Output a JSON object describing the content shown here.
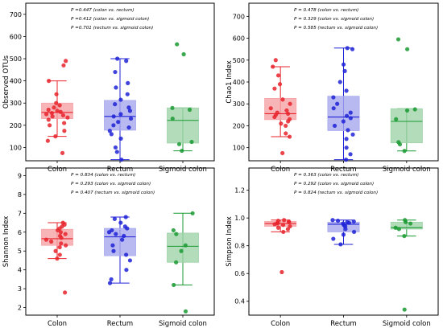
{
  "panel_order": [
    "observed_otus",
    "chao1",
    "shannon",
    "simpson"
  ],
  "groups": [
    {
      "key": "colon",
      "label": "Colon",
      "color": "#e8232b",
      "box_fill": "#f5a3a6"
    },
    {
      "key": "rectum",
      "label": "Rectum",
      "color": "#1f22d6",
      "box_fill": "#a7a8ee"
    },
    {
      "key": "sigmoid",
      "label": "Sigmoid colon",
      "color": "#1a9a33",
      "box_fill": "#9fd3a9"
    }
  ],
  "chart_data": [
    {
      "id": "observed_otus",
      "type": "box",
      "ylabel": "Observed OTUs",
      "yticks": [
        100,
        200,
        300,
        400,
        500,
        600,
        700
      ],
      "ylim": [
        40,
        750
      ],
      "annotations": [
        "P =0.447 (colon vs. rectum)",
        "P =0.412 (colon vs. sigmoid colon)",
        "P =0.701 (rectum vs. sigmoid colon)"
      ],
      "series": [
        {
          "group": "colon",
          "q1": 230,
          "median": 258,
          "q3": 300,
          "whisker_low": 150,
          "whisker_high": 400,
          "points": [
            75,
            130,
            150,
            175,
            200,
            210,
            225,
            235,
            240,
            245,
            250,
            255,
            260,
            265,
            270,
            280,
            290,
            300,
            340,
            400,
            470,
            490
          ]
        },
        {
          "group": "rectum",
          "q1": 178,
          "median": 240,
          "q3": 312,
          "whisker_low": 45,
          "whisker_high": 500,
          "points": [
            45,
            80,
            100,
            140,
            160,
            175,
            190,
            200,
            215,
            230,
            240,
            250,
            265,
            280,
            295,
            315,
            340,
            370,
            390,
            440,
            490,
            500
          ]
        },
        {
          "group": "sigmoid",
          "q1": 120,
          "median": 222,
          "q3": 278,
          "whisker_low": 85,
          "whisker_high": 278,
          "points": [
            85,
            115,
            125,
            230,
            270,
            278,
            520,
            565
          ]
        }
      ]
    },
    {
      "id": "chao1",
      "type": "box",
      "ylabel": "Chao1 Index",
      "yticks": [
        100,
        200,
        300,
        400,
        500,
        600,
        700
      ],
      "ylim": [
        40,
        760
      ],
      "annotations": [
        "P = 0.478 (colon vs. rectum)",
        "P = 0.329 (colon vs. sigmoid colon)",
        "P = 0.585 (rectum vs. sigmoid colon)"
      ],
      "series": [
        {
          "group": "colon",
          "q1": 228,
          "median": 255,
          "q3": 325,
          "whisker_low": 150,
          "whisker_high": 470,
          "points": [
            75,
            150,
            165,
            200,
            210,
            220,
            230,
            240,
            250,
            255,
            260,
            270,
            280,
            300,
            320,
            370,
            390,
            430,
            470,
            500
          ]
        },
        {
          "group": "rectum",
          "q1": 178,
          "median": 240,
          "q3": 335,
          "whisker_low": 45,
          "whisker_high": 555,
          "points": [
            45,
            70,
            100,
            140,
            160,
            180,
            200,
            220,
            235,
            245,
            260,
            280,
            300,
            330,
            360,
            400,
            450,
            480,
            550,
            555
          ]
        },
        {
          "group": "sigmoid",
          "q1": 122,
          "median": 220,
          "q3": 278,
          "whisker_low": 85,
          "whisker_high": 278,
          "points": [
            85,
            115,
            125,
            230,
            270,
            275,
            550,
            595
          ]
        }
      ]
    },
    {
      "id": "shannon",
      "type": "box",
      "ylabel": "Shannon Index",
      "yticks": [
        2,
        3,
        4,
        5,
        6,
        7,
        8,
        9
      ],
      "ylim": [
        1.6,
        9.4
      ],
      "annotations": [
        "P = 0.834 (colon vs. rectum)",
        "P = 0.293 (colon vs. sigmoid colon)",
        "P = 0.407 (rectum vs. sigmoid colon)"
      ],
      "series": [
        {
          "group": "colon",
          "q1": 5.3,
          "median": 5.65,
          "q3": 6.15,
          "whisker_low": 4.6,
          "whisker_high": 6.5,
          "points": [
            2.8,
            4.6,
            4.8,
            5.0,
            5.2,
            5.3,
            5.4,
            5.5,
            5.6,
            5.7,
            5.8,
            5.9,
            6.0,
            6.1,
            6.2,
            6.3,
            6.4,
            6.5
          ]
        },
        {
          "group": "rectum",
          "q1": 4.75,
          "median": 5.75,
          "q3": 6.2,
          "whisker_low": 3.3,
          "whisker_high": 6.8,
          "points": [
            3.3,
            3.5,
            4.0,
            4.5,
            4.8,
            5.0,
            5.3,
            5.6,
            5.8,
            5.9,
            6.0,
            6.1,
            6.2,
            6.3,
            6.5,
            6.7,
            6.8
          ]
        },
        {
          "group": "sigmoid",
          "q1": 4.4,
          "median": 5.25,
          "q3": 5.95,
          "whisker_low": 3.2,
          "whisker_high": 7.0,
          "points": [
            1.8,
            3.2,
            4.4,
            5.0,
            5.3,
            5.9,
            6.1,
            7.0
          ]
        }
      ]
    },
    {
      "id": "simpson",
      "type": "box",
      "ylabel": "Simpson Index",
      "yticks": [
        0.4,
        0.6,
        0.8,
        1.0,
        1.2
      ],
      "ylim": [
        0.3,
        1.36
      ],
      "annotations": [
        "P = 0.363 (colon vs. rectum)",
        "P = 0.292 (colon vs. sigmoid colon)",
        "P = 0.824 (rectum vs. sigmoid colon)"
      ],
      "series": [
        {
          "group": "colon",
          "q1": 0.94,
          "median": 0.96,
          "q3": 0.975,
          "whisker_low": 0.9,
          "whisker_high": 0.985,
          "points": [
            0.61,
            0.9,
            0.92,
            0.93,
            0.94,
            0.95,
            0.955,
            0.96,
            0.965,
            0.97,
            0.975,
            0.98,
            0.985
          ]
        },
        {
          "group": "rectum",
          "q1": 0.9,
          "median": 0.955,
          "q3": 0.97,
          "whisker_low": 0.81,
          "whisker_high": 0.985,
          "points": [
            0.81,
            0.85,
            0.88,
            0.9,
            0.92,
            0.94,
            0.95,
            0.96,
            0.965,
            0.97,
            0.975,
            0.98,
            0.985
          ]
        },
        {
          "group": "sigmoid",
          "q1": 0.92,
          "median": 0.93,
          "q3": 0.97,
          "whisker_low": 0.87,
          "whisker_high": 0.985,
          "points": [
            0.34,
            0.87,
            0.92,
            0.93,
            0.96,
            0.97,
            0.985
          ]
        }
      ]
    }
  ]
}
